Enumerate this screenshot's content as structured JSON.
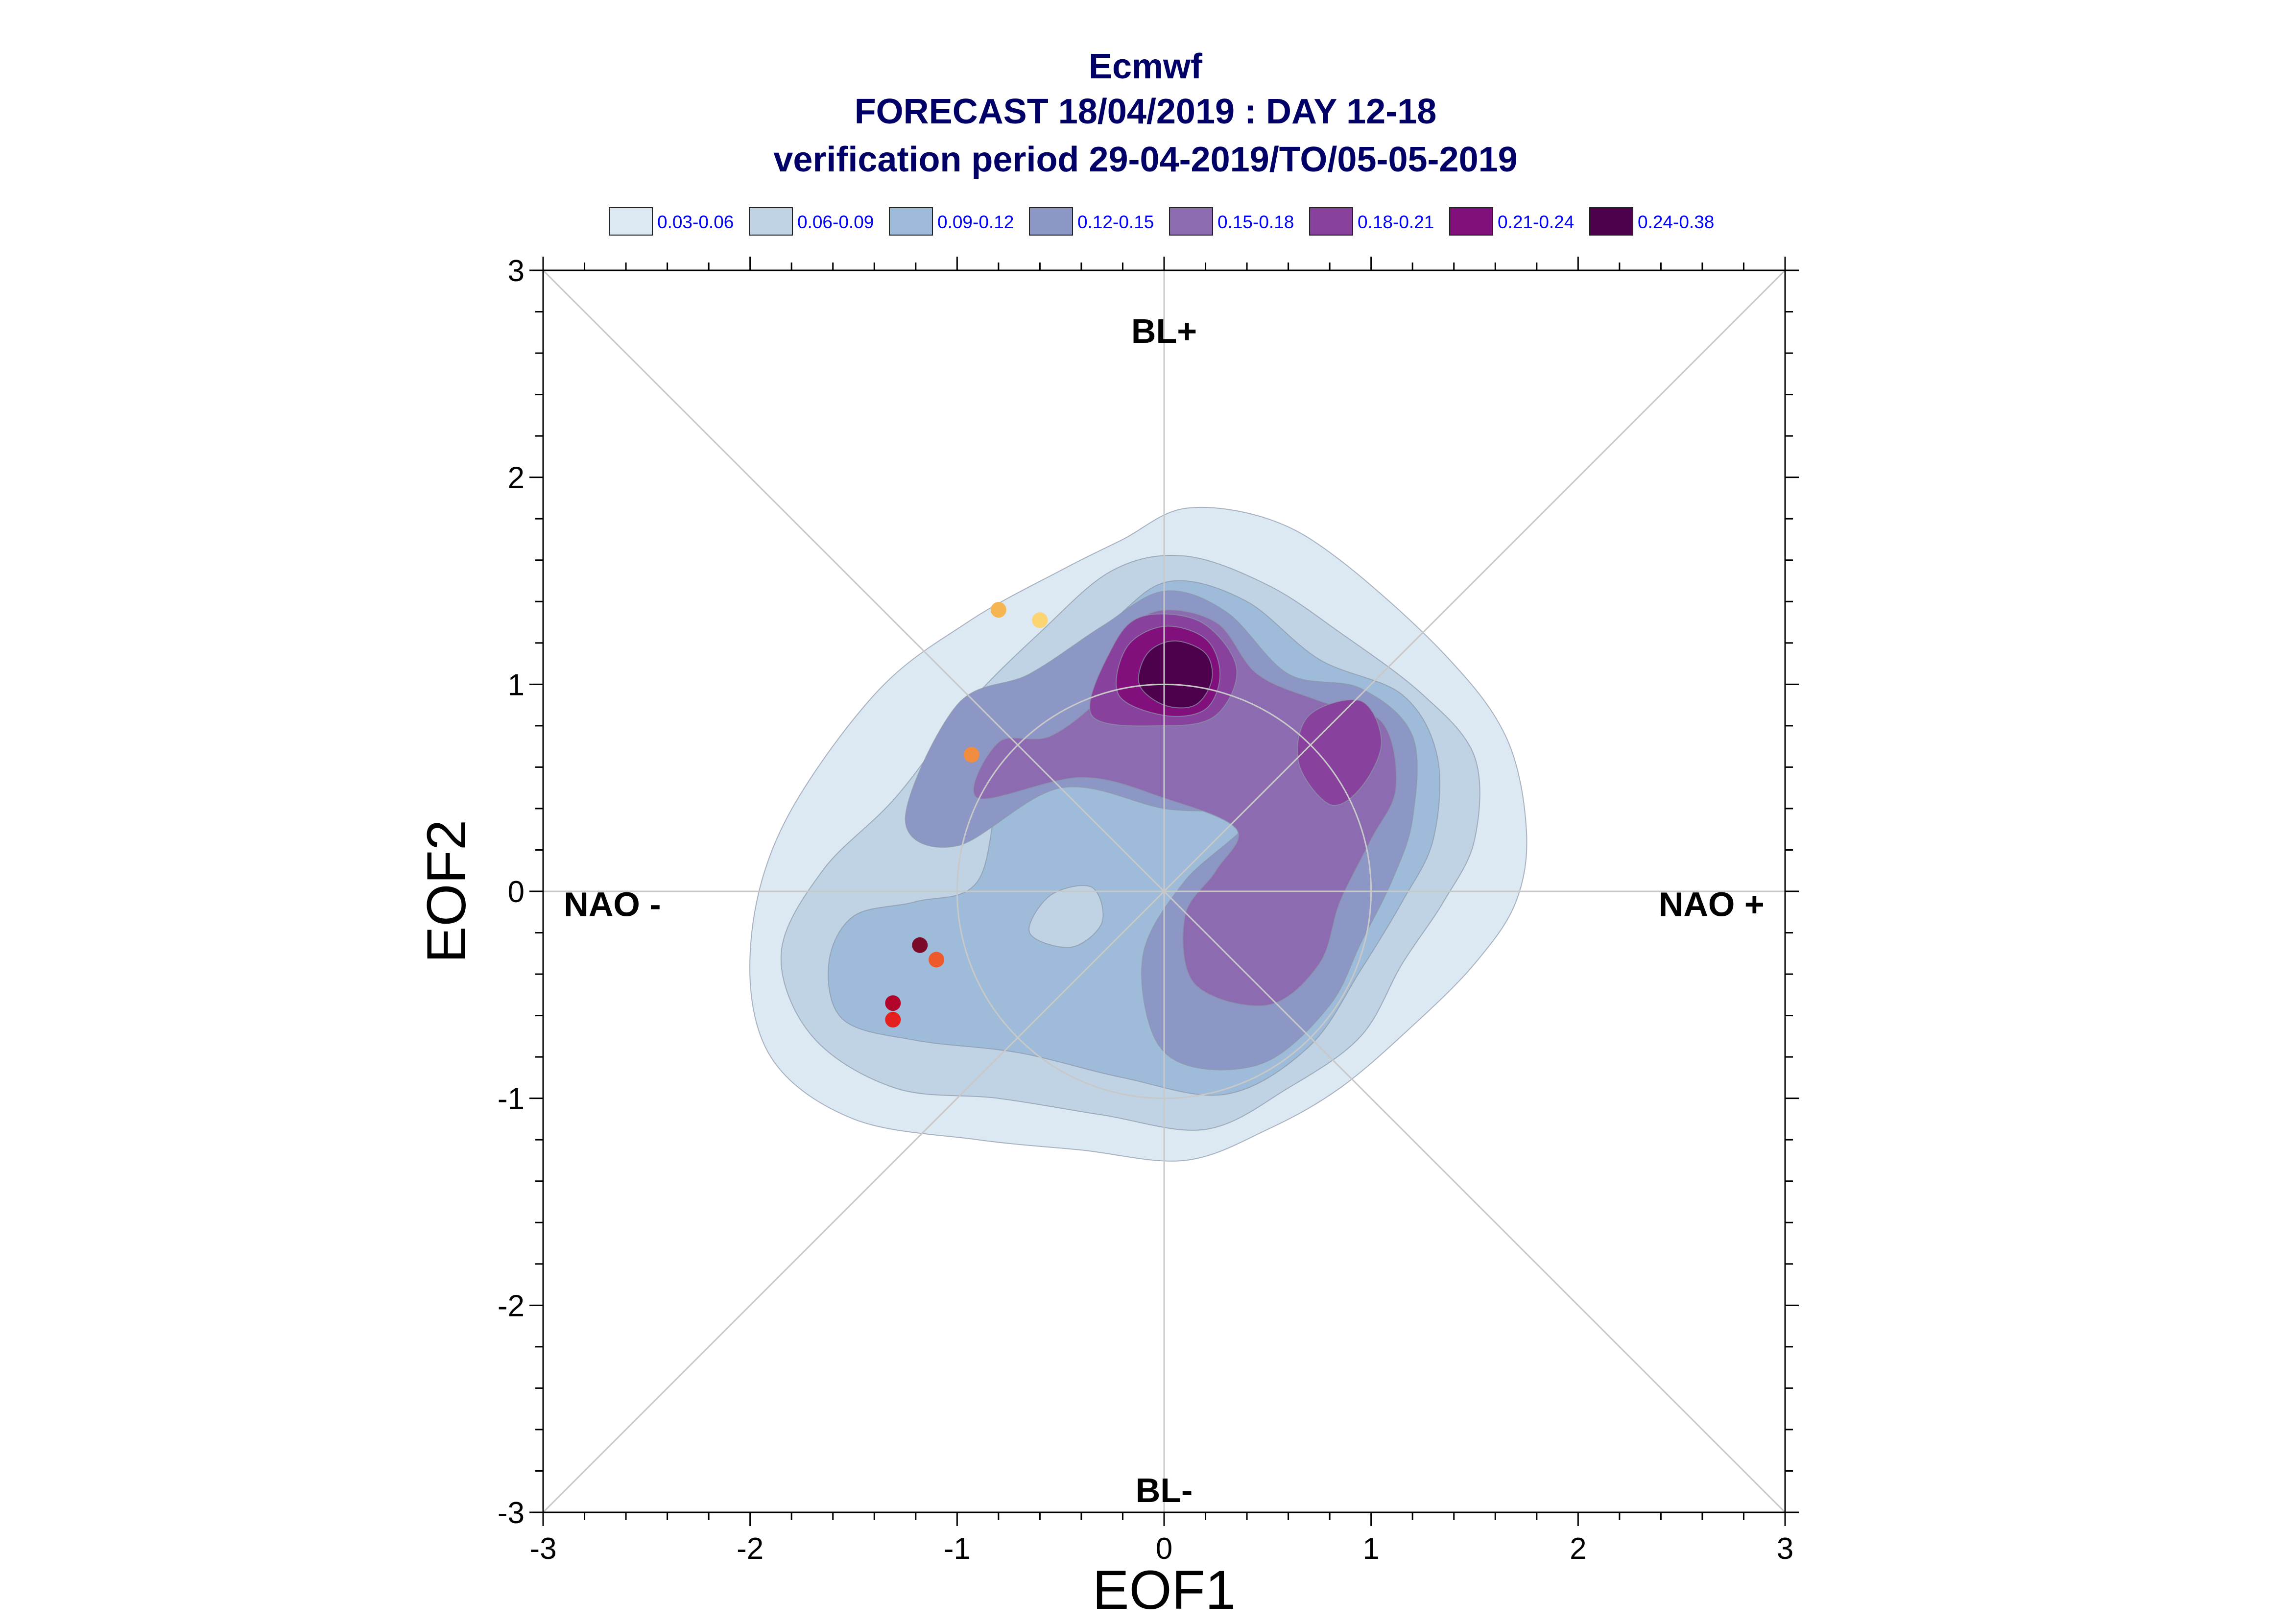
{
  "chart_data": {
    "type": "contour-scatter",
    "title_lines": [
      "Ecmwf",
      "FORECAST 18/04/2019 : DAY 12-18",
      "verification period 29-04-2019/TO/05-05-2019"
    ],
    "xlabel": "EOF1",
    "ylabel": "EOF2",
    "xlim": [
      -3,
      3
    ],
    "ylim": [
      -3,
      3
    ],
    "xticks": [
      -3,
      -2,
      -1,
      0,
      1,
      2,
      3
    ],
    "yticks": [
      -3,
      -2,
      -1,
      0,
      1,
      2,
      3
    ],
    "xtick_labels": [
      "-3",
      "-2",
      "-1",
      "0",
      "1",
      "2",
      "3"
    ],
    "ytick_labels": [
      "-3",
      "-2",
      "-1",
      "0",
      "1",
      "2",
      "3"
    ],
    "regime_labels": {
      "top": "BL+",
      "bottom": "BL-",
      "left": "NAO -",
      "right": "NAO +"
    },
    "grid": "diagonals, axes through origin and unit circle",
    "legend": {
      "placement": "top",
      "entries": [
        {
          "label": "0.03-0.06",
          "color": "#dde9f2"
        },
        {
          "label": "0.06-0.09",
          "color": "#c0d3e5"
        },
        {
          "label": "0.09-0.12",
          "color": "#9ebcd9"
        },
        {
          "label": "0.12-0.15",
          "color": "#8d97c6"
        },
        {
          "label": "0.15-0.18",
          "color": "#8c6bb1"
        },
        {
          "label": "0.18-0.21",
          "color": "#88419d"
        },
        {
          "label": "0.21-0.24",
          "color": "#810f7c"
        },
        {
          "label": "0.24-0.38",
          "color": "#4d004b"
        }
      ]
    },
    "density_levels": [
      {
        "range": "0.03-0.06",
        "color": "#dde9f2",
        "regions": [
          [
            [
              -2.0,
              -0.3
            ],
            [
              -1.85,
              0.3
            ],
            [
              -1.4,
              0.95
            ],
            [
              -0.95,
              1.3
            ],
            [
              -0.5,
              1.55
            ],
            [
              -0.2,
              1.7
            ],
            [
              0.1,
              1.85
            ],
            [
              0.5,
              1.8
            ],
            [
              0.85,
              1.6
            ],
            [
              1.35,
              1.15
            ],
            [
              1.65,
              0.75
            ],
            [
              1.75,
              0.3
            ],
            [
              1.7,
              -0.05
            ],
            [
              1.5,
              -0.35
            ],
            [
              1.2,
              -0.65
            ],
            [
              0.85,
              -0.95
            ],
            [
              0.5,
              -1.15
            ],
            [
              0.1,
              -1.3
            ],
            [
              -0.4,
              -1.25
            ],
            [
              -0.9,
              -1.2
            ],
            [
              -1.5,
              -1.1
            ],
            [
              -1.9,
              -0.8
            ]
          ]
        ]
      },
      {
        "range": "0.06-0.09",
        "color": "#c0d3e5",
        "regions": [
          [
            [
              -1.85,
              -0.3
            ],
            [
              -1.65,
              0.1
            ],
            [
              -1.3,
              0.45
            ],
            [
              -0.95,
              0.9
            ],
            [
              -0.6,
              1.25
            ],
            [
              -0.25,
              1.55
            ],
            [
              0.1,
              1.62
            ],
            [
              0.5,
              1.48
            ],
            [
              0.85,
              1.25
            ],
            [
              1.25,
              0.95
            ],
            [
              1.5,
              0.65
            ],
            [
              1.5,
              0.25
            ],
            [
              1.35,
              -0.05
            ],
            [
              1.15,
              -0.35
            ],
            [
              0.95,
              -0.7
            ],
            [
              0.6,
              -0.95
            ],
            [
              0.2,
              -1.15
            ],
            [
              -0.3,
              -1.08
            ],
            [
              -0.8,
              -1.0
            ],
            [
              -1.3,
              -0.95
            ],
            [
              -1.7,
              -0.7
            ]
          ]
        ]
      },
      {
        "range": "0.09-0.12",
        "color": "#9ebcd9",
        "regions": [
          [
            [
              -1.62,
              -0.35
            ],
            [
              -1.5,
              -0.12
            ],
            [
              -1.2,
              -0.05
            ],
            [
              -0.9,
              0.05
            ],
            [
              -0.78,
              0.55
            ],
            [
              -0.55,
              0.95
            ],
            [
              -0.2,
              1.35
            ],
            [
              0.05,
              1.5
            ],
            [
              0.4,
              1.4
            ],
            [
              0.75,
              1.12
            ],
            [
              1.15,
              0.95
            ],
            [
              1.32,
              0.65
            ],
            [
              1.3,
              0.25
            ],
            [
              1.15,
              -0.05
            ],
            [
              0.95,
              -0.38
            ],
            [
              0.7,
              -0.75
            ],
            [
              0.3,
              -0.98
            ],
            [
              -0.2,
              -0.9
            ],
            [
              -0.7,
              -0.78
            ],
            [
              -1.2,
              -0.72
            ],
            [
              -1.55,
              -0.62
            ]
          ]
        ]
      },
      {
        "range": "0.12-0.15",
        "color": "#8d97c6",
        "regions": [
          [
            [
              -1.25,
              0.35
            ],
            [
              -1.0,
              0.9
            ],
            [
              -0.65,
              1.05
            ],
            [
              -0.3,
              1.28
            ],
            [
              0.0,
              1.45
            ],
            [
              0.3,
              1.35
            ],
            [
              0.6,
              1.05
            ],
            [
              0.95,
              0.98
            ],
            [
              1.2,
              0.75
            ],
            [
              1.2,
              0.35
            ],
            [
              1.1,
              0.05
            ],
            [
              0.95,
              -0.25
            ],
            [
              0.8,
              -0.55
            ],
            [
              0.5,
              -0.82
            ],
            [
              0.15,
              -0.85
            ],
            [
              -0.05,
              -0.7
            ],
            [
              -0.1,
              -0.3
            ],
            [
              0.1,
              0.05
            ],
            [
              0.4,
              0.35
            ],
            [
              0.0,
              0.4
            ],
            [
              -0.5,
              0.5
            ],
            [
              -1.0,
              0.22
            ]
          ]
        ]
      },
      {
        "range": "0.15-0.18",
        "color": "#8c6bb1",
        "regions": [
          [
            [
              -0.9,
              0.45
            ],
            [
              -0.8,
              0.72
            ],
            [
              -0.55,
              0.75
            ],
            [
              -0.3,
              0.95
            ],
            [
              -0.25,
              1.15
            ],
            [
              -0.05,
              1.35
            ],
            [
              0.25,
              1.3
            ],
            [
              0.45,
              1.05
            ],
            [
              0.75,
              0.92
            ],
            [
              1.05,
              0.82
            ],
            [
              1.12,
              0.5
            ],
            [
              1.0,
              0.25
            ],
            [
              0.85,
              -0.05
            ],
            [
              0.75,
              -0.35
            ],
            [
              0.5,
              -0.55
            ],
            [
              0.15,
              -0.45
            ],
            [
              0.1,
              -0.12
            ],
            [
              0.25,
              0.1
            ],
            [
              0.35,
              0.3
            ],
            [
              0.0,
              0.45
            ],
            [
              -0.4,
              0.55
            ]
          ]
        ]
      },
      {
        "range": "0.18-0.21",
        "color": "#88419d",
        "regions": [
          [
            [
              -0.35,
              0.85
            ],
            [
              -0.25,
              1.18
            ],
            [
              -0.1,
              1.33
            ],
            [
              0.18,
              1.3
            ],
            [
              0.35,
              1.08
            ],
            [
              0.25,
              0.85
            ],
            [
              0.0,
              0.8
            ]
          ],
          [
            [
              0.65,
              0.62
            ],
            [
              0.7,
              0.85
            ],
            [
              0.95,
              0.92
            ],
            [
              1.05,
              0.72
            ],
            [
              0.95,
              0.5
            ],
            [
              0.8,
              0.42
            ]
          ]
        ]
      },
      {
        "range": "0.21-0.24",
        "color": "#810f7c",
        "regions": [
          [
            [
              -0.22,
              0.95
            ],
            [
              -0.18,
              1.18
            ],
            [
              0.0,
              1.28
            ],
            [
              0.2,
              1.22
            ],
            [
              0.27,
              1.05
            ],
            [
              0.2,
              0.88
            ],
            [
              0.0,
              0.85
            ]
          ]
        ]
      },
      {
        "range": "0.24-0.38",
        "color": "#4d004b",
        "regions": [
          [
            [
              -0.12,
              1.0
            ],
            [
              -0.08,
              1.15
            ],
            [
              0.05,
              1.21
            ],
            [
              0.2,
              1.15
            ],
            [
              0.23,
              1.02
            ],
            [
              0.15,
              0.9
            ],
            [
              0.0,
              0.9
            ]
          ]
        ]
      }
    ],
    "light_pockets": [
      {
        "color": "#c0d3e5",
        "points": [
          [
            -0.65,
            -0.2
          ],
          [
            -0.55,
            -0.02
          ],
          [
            -0.35,
            0.02
          ],
          [
            -0.3,
            -0.15
          ],
          [
            -0.45,
            -0.27
          ]
        ]
      }
    ],
    "scatter": [
      {
        "x": -0.8,
        "y": 1.36,
        "color": "#f6b553"
      },
      {
        "x": -0.6,
        "y": 1.31,
        "color": "#fcd472"
      },
      {
        "x": -0.93,
        "y": 0.66,
        "color": "#f18d41"
      },
      {
        "x": -1.18,
        "y": -0.26,
        "color": "#7a0a2a"
      },
      {
        "x": -1.1,
        "y": -0.33,
        "color": "#ef5a2c"
      },
      {
        "x": -1.31,
        "y": -0.54,
        "color": "#b1052c"
      },
      {
        "x": -1.31,
        "y": -0.62,
        "color": "#e3221f"
      }
    ]
  }
}
